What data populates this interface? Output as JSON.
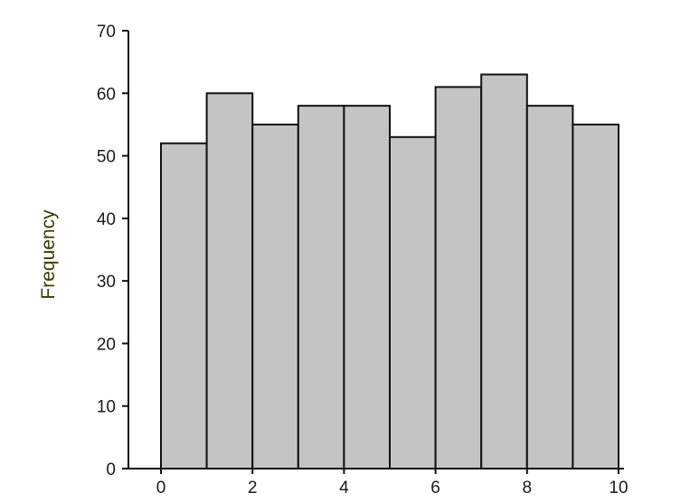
{
  "chart_data": {
    "type": "bar",
    "title": "",
    "xlabel": "",
    "ylabel": "Frequency",
    "bin_edges": [
      0,
      1,
      2,
      3,
      4,
      5,
      6,
      7,
      8,
      9,
      10
    ],
    "values": [
      52,
      60,
      55,
      58,
      58,
      53,
      61,
      63,
      58,
      55
    ],
    "xlim": [
      0,
      10
    ],
    "ylim": [
      0,
      70
    ],
    "xticks": [
      "0",
      "2",
      "4",
      "6",
      "8",
      "10"
    ],
    "yticks": [
      "0",
      "10",
      "20",
      "30",
      "40",
      "50",
      "60",
      "70"
    ],
    "grid": false,
    "legend": "none"
  },
  "colors": {
    "bar_fill": "#c4c4c4",
    "bar_edge": "#111111",
    "ylabel_color": "#3a3a00"
  }
}
